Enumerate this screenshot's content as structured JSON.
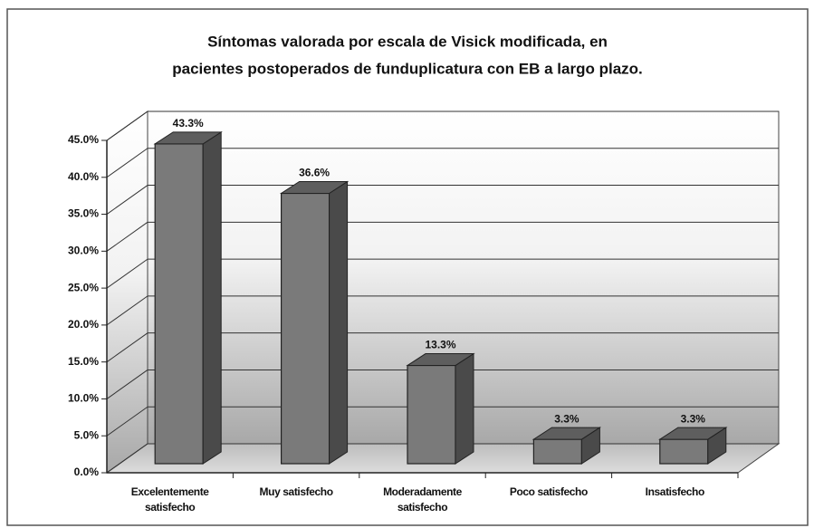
{
  "chart_data": {
    "type": "bar3d",
    "title": [
      "Síntomas valorada por escala de Visick modificada, en",
      "pacientes postoperados de funduplicatura con EB a largo plazo."
    ],
    "categories": [
      "Excelentemente satisfecho",
      "Muy satisfecho",
      "Moderadamente satisfecho",
      "Poco satisfecho",
      "Insatisfecho"
    ],
    "values": [
      43.3,
      36.6,
      13.3,
      3.3,
      3.3
    ],
    "value_labels": [
      "43.3%",
      "36.6%",
      "13.3%",
      "3.3%",
      "3.3%"
    ],
    "color": "#7a7a7a",
    "ylim": [
      0,
      45
    ],
    "yticks": [
      {
        "value": 0,
        "label": "0.0%"
      },
      {
        "value": 5,
        "label": "5.0%"
      },
      {
        "value": 10,
        "label": "10.0%"
      },
      {
        "value": 15,
        "label": "15.0%"
      },
      {
        "value": 20,
        "label": "20.0%"
      },
      {
        "value": 25,
        "label": "25.0%"
      },
      {
        "value": 30,
        "label": "30.0%"
      },
      {
        "value": 35,
        "label": "35.0%"
      },
      {
        "value": 40,
        "label": "40.0%"
      },
      {
        "value": 45,
        "label": "45.0%"
      }
    ],
    "grid": true
  }
}
